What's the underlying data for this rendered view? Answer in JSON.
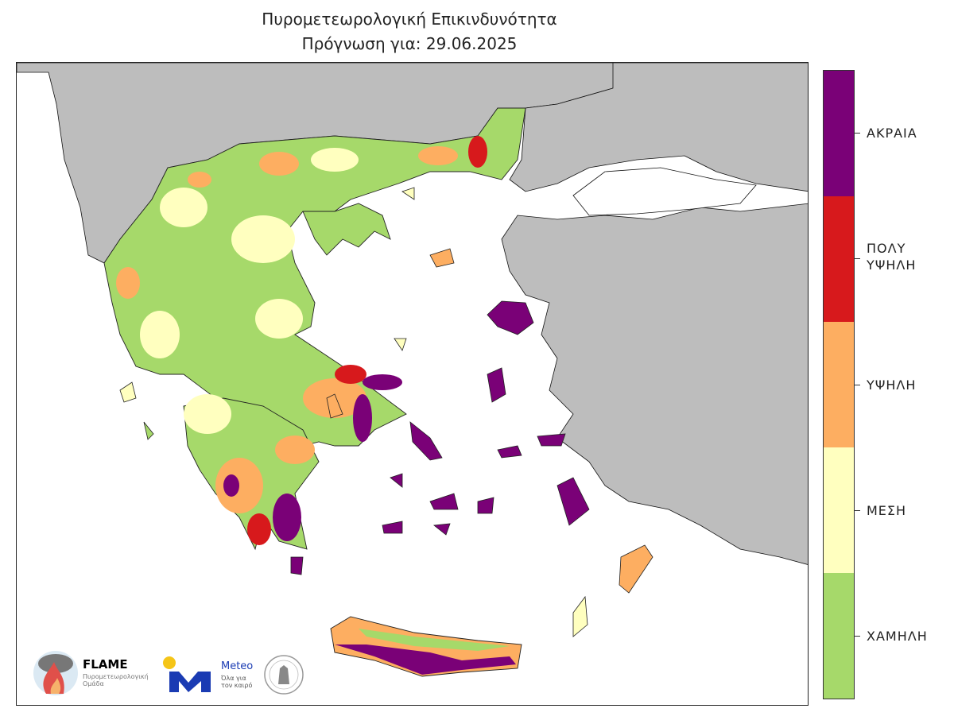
{
  "title": "Πυρομετεωρολογική Επικινδυνότητα",
  "subtitle": "Πρόγνωση για: 29.06.2025",
  "legend": {
    "levels": [
      {
        "label": "ΑΚΡΑΙΑ",
        "color": "#7a0177"
      },
      {
        "label": "ΠΟΛΥ ΥΨΗΛΗ",
        "color": "#d7191c"
      },
      {
        "label": "ΥΨΗΛΗ",
        "color": "#fdae61"
      },
      {
        "label": "ΜΕΣΗ",
        "color": "#ffffbf"
      },
      {
        "label": "ΧΑΜΗΛΗ",
        "color": "#a6d96a"
      }
    ]
  },
  "colors": {
    "land_outside": "#bdbdbd",
    "sea": "#ffffff"
  },
  "logos": {
    "flame_name": "FLAME",
    "flame_sub": "Πυρομετεωρολογική Ομάδα",
    "meteo_name": "Meteo",
    "meteo_sub": "Όλα για τον καιρό"
  }
}
